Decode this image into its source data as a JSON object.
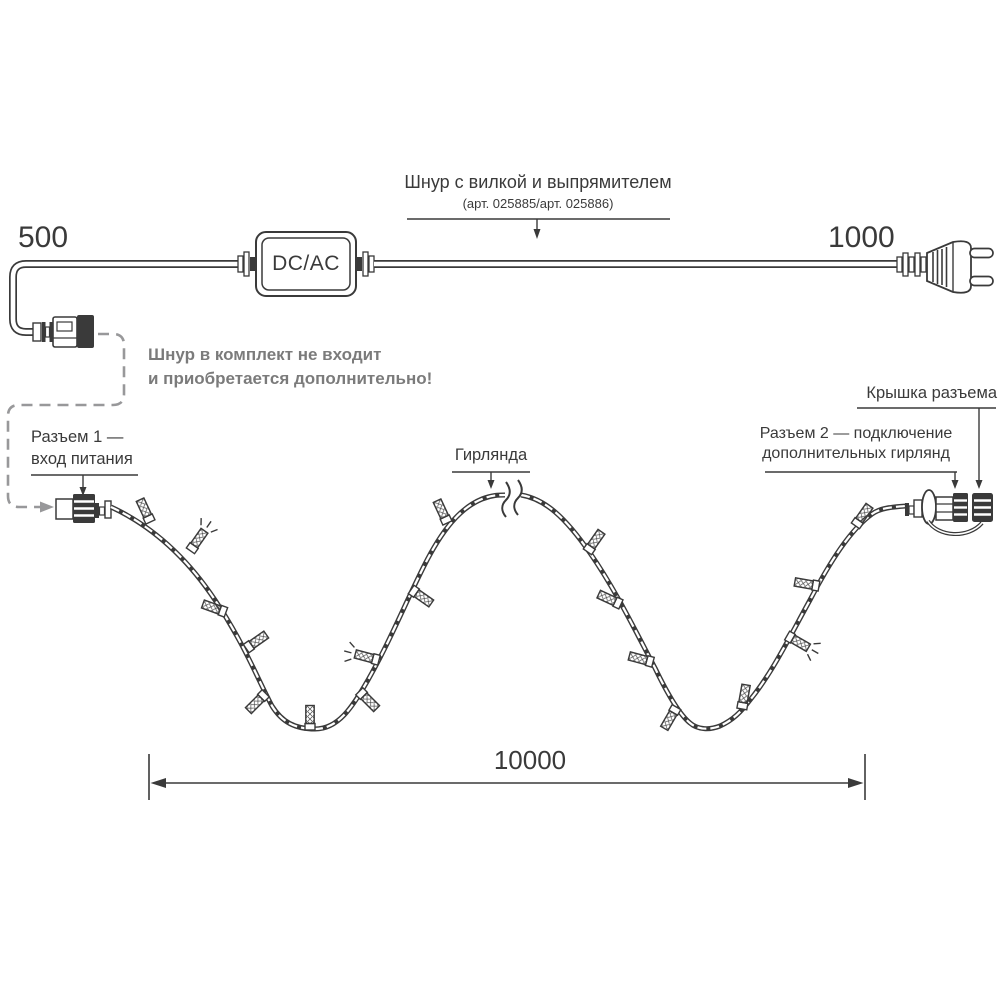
{
  "colors": {
    "ink": "#3a3a3a",
    "leader_gray": "#98989a",
    "note_gray": "#7b7b7b"
  },
  "labels": {
    "cord_title": "Шнур с вилкой и выпрямителем",
    "cord_article": "(арт. 025885/арт. 025886)",
    "dim_left": "500",
    "dim_right": "1000",
    "converter": "DC/AC",
    "note_line1": "Шнур в комплект не входит",
    "note_line2": "и приобретается дополнительно!",
    "connector1_line1": "Разъем 1 —",
    "connector1_line2": "вход питания",
    "garland": "Гирлянда",
    "cap": "Крышка разъема",
    "connector2_line1": "Разъем 2 — подключение",
    "connector2_line2": "дополнительных гирлянд",
    "dim_total": "10000"
  }
}
